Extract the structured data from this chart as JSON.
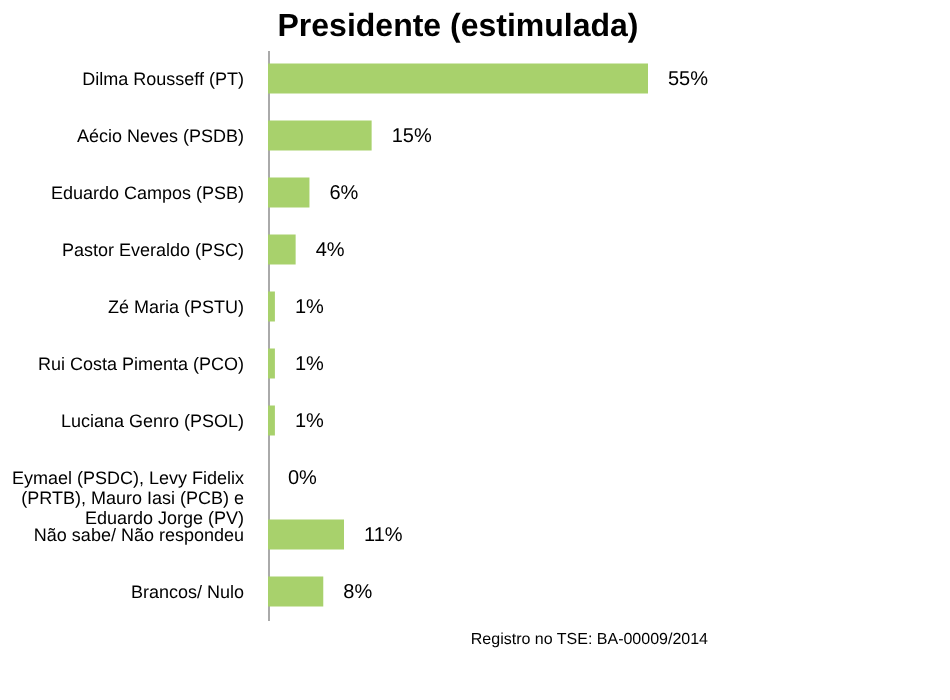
{
  "chart_data": {
    "type": "bar",
    "orientation": "horizontal",
    "title": "Presidente (estimulada)",
    "categories": [
      "Dilma Rousseff (PT)",
      "Aécio Neves (PSDB)",
      "Eduardo Campos (PSB)",
      "Pastor Everaldo (PSC)",
      "Zé Maria (PSTU)",
      "Rui Costa Pimenta (PCO)",
      "Luciana Genro (PSOL)",
      "Eymael (PSDC), Levy Fidelix (PRTB), Mauro Iasi (PCB) e Eduardo Jorge (PV)",
      "Não sabe/ Não respondeu",
      "Brancos/ Nulo"
    ],
    "values": [
      55,
      15,
      6,
      4,
      1,
      1,
      1,
      0,
      11,
      8
    ],
    "value_labels": [
      "55%",
      "15%",
      "6%",
      "4%",
      "1%",
      "1%",
      "1%",
      "0%",
      "11%",
      "8%"
    ],
    "color": "#a8d16c",
    "annotations": [
      "Registro no TSE: BA-00009/2014"
    ]
  }
}
